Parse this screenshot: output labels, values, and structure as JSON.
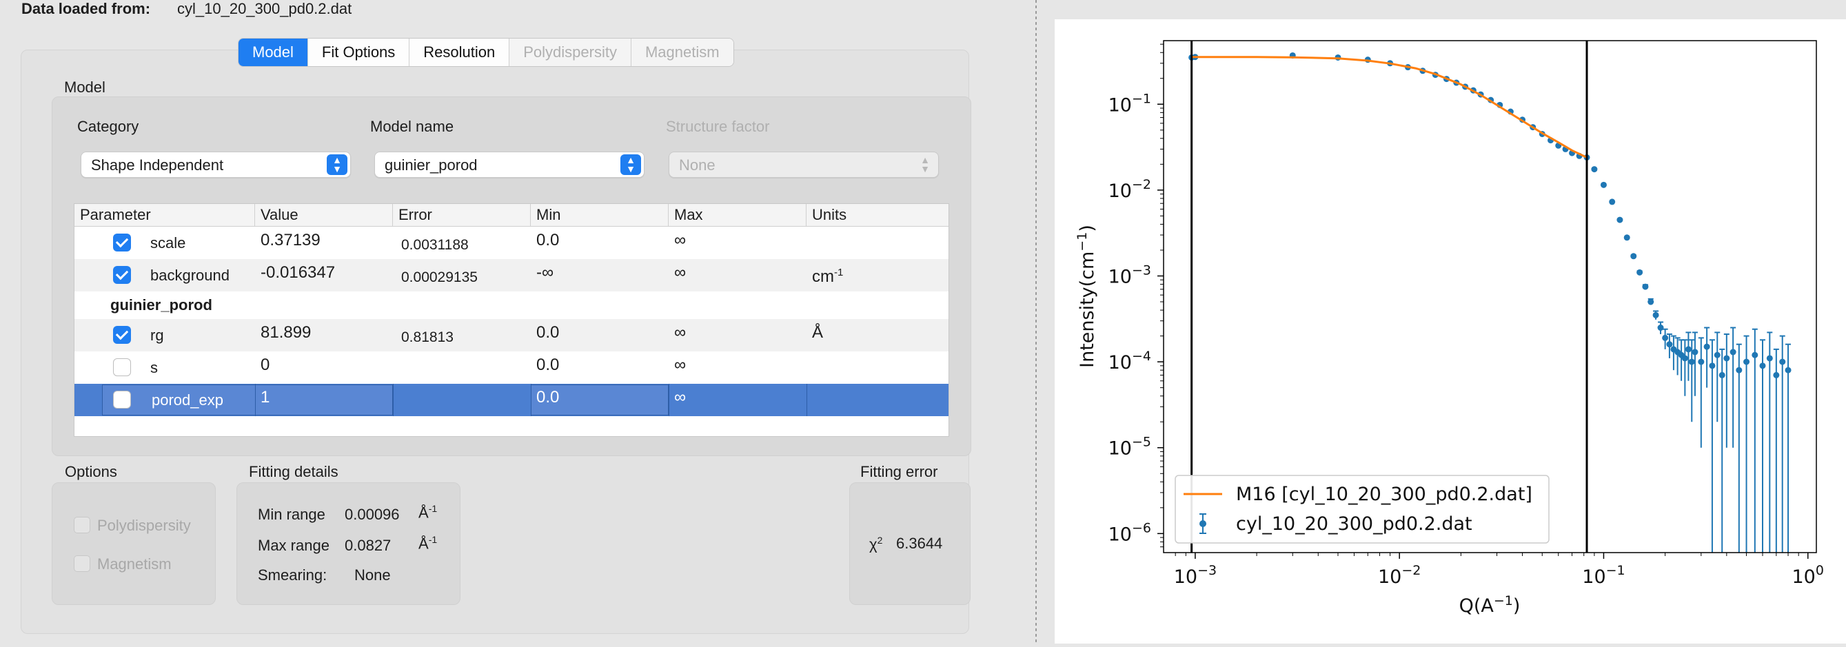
{
  "header": {
    "data_label": "Data loaded from:",
    "data_file": "cyl_10_20_300_pd0.2.dat"
  },
  "tabs": [
    {
      "label": "Model",
      "state": "active"
    },
    {
      "label": "Fit Options",
      "state": "normal"
    },
    {
      "label": "Resolution",
      "state": "normal"
    },
    {
      "label": "Polydispersity",
      "state": "disabled"
    },
    {
      "label": "Magnetism",
      "state": "disabled"
    }
  ],
  "model": {
    "section_label": "Model",
    "category_label": "Category",
    "category_value": "Shape Independent",
    "model_name_label": "Model name",
    "model_name_value": "guinier_porod",
    "structure_factor_label": "Structure factor",
    "structure_factor_value": "None"
  },
  "table": {
    "headers": [
      "Parameter",
      "Value",
      "Error",
      "Min",
      "Max",
      "Units"
    ],
    "rows": [
      {
        "checked": true,
        "name": "scale",
        "value": "0.37139",
        "error": "0.0031188",
        "min": "0.0",
        "max": "∞",
        "units": ""
      },
      {
        "checked": true,
        "name": "background",
        "value": "-0.016347",
        "error": "0.00029135",
        "min": "-∞",
        "max": "∞",
        "units": "cm",
        "units_sup": "-1"
      },
      {
        "group": "guinier_porod"
      },
      {
        "checked": true,
        "name": "rg",
        "value": "81.899",
        "error": "0.81813",
        "min": "0.0",
        "max": "∞",
        "units": "Å"
      },
      {
        "checked": false,
        "name": "s",
        "value": "0",
        "error": "",
        "min": "0.0",
        "max": "∞",
        "units": ""
      },
      {
        "checked": false,
        "name": "porod_exp",
        "value": "1",
        "error": "",
        "min": "0.0",
        "max": "∞",
        "units": "",
        "selected": true
      }
    ]
  },
  "options": {
    "label": "Options",
    "items": [
      "Polydispersity",
      "Magnetism"
    ]
  },
  "fitting_details": {
    "label": "Fitting details",
    "min_range_label": "Min range",
    "min_range_value": "0.00096",
    "max_range_label": "Max range",
    "max_range_value": "0.0827",
    "unit": "Å",
    "unit_sup": "-1",
    "smearing_label": "Smearing:",
    "smearing_value": "None"
  },
  "fitting_error": {
    "label": "Fitting error",
    "chi_label": "χ",
    "chi_sup": "2",
    "chi_value": "6.3644"
  },
  "colors": {
    "accent": "#1f7ef1",
    "selection": "#4b7fd1",
    "data_series": "#1f77b4",
    "model_series": "#ff7f0e"
  },
  "chart_data": {
    "type": "scatter",
    "x_scale": "log",
    "y_scale": "log",
    "xlabel": "Q(A",
    "xlabel_sup": "−1",
    "xlabel_end": ")",
    "ylabel": "Intensity(cm",
    "ylabel_sup": "−1",
    "ylabel_end": ")",
    "xlim": [
      0.0007,
      1.1
    ],
    "ylim": [
      6e-07,
      0.55
    ],
    "x_ticks": [
      {
        "value": 0.001,
        "base": "10",
        "exp": "−3"
      },
      {
        "value": 0.01,
        "base": "10",
        "exp": "−2"
      },
      {
        "value": 0.1,
        "base": "10",
        "exp": "−1"
      },
      {
        "value": 1,
        "base": "10",
        "exp": "0"
      }
    ],
    "y_ticks": [
      {
        "value": 0.1,
        "base": "10",
        "exp": "−1"
      },
      {
        "value": 0.01,
        "base": "10",
        "exp": "−2"
      },
      {
        "value": 0.001,
        "base": "10",
        "exp": "−3"
      },
      {
        "value": 0.0001,
        "base": "10",
        "exp": "−4"
      },
      {
        "value": 1e-05,
        "base": "10",
        "exp": "−5"
      },
      {
        "value": 1e-06,
        "base": "10",
        "exp": "−6"
      }
    ],
    "vlines": [
      0.00096,
      0.0827
    ],
    "legend_position": "bottom-left",
    "series": [
      {
        "name": "M16 [cyl_10_20_300_pd0.2.dat]",
        "kind": "line",
        "x": [
          0.00096,
          0.002,
          0.003,
          0.005,
          0.007,
          0.009,
          0.012,
          0.015,
          0.02,
          0.025,
          0.03,
          0.04,
          0.05,
          0.06,
          0.07,
          0.0827
        ],
        "y": [
          0.355,
          0.354,
          0.352,
          0.342,
          0.322,
          0.298,
          0.262,
          0.224,
          0.17,
          0.128,
          0.098,
          0.064,
          0.046,
          0.036,
          0.029,
          0.024
        ]
      },
      {
        "name": "cyl_10_20_300_pd0.2.dat",
        "kind": "errorbar",
        "x": [
          0.00096,
          0.001,
          0.003,
          0.005,
          0.007,
          0.009,
          0.011,
          0.013,
          0.015,
          0.017,
          0.019,
          0.021,
          0.023,
          0.025,
          0.028,
          0.031,
          0.035,
          0.04,
          0.045,
          0.05,
          0.055,
          0.06,
          0.065,
          0.07,
          0.076,
          0.0827,
          0.09,
          0.1,
          0.11,
          0.12,
          0.13,
          0.14,
          0.15,
          0.16,
          0.17,
          0.18,
          0.19,
          0.2,
          0.21,
          0.22,
          0.23,
          0.24,
          0.25,
          0.26,
          0.27,
          0.28,
          0.3,
          0.32,
          0.34,
          0.36,
          0.38,
          0.4,
          0.43,
          0.46,
          0.5,
          0.55,
          0.6,
          0.65,
          0.7,
          0.75,
          0.8
        ],
        "y": [
          0.35,
          0.355,
          0.37,
          0.35,
          0.33,
          0.3,
          0.27,
          0.245,
          0.22,
          0.197,
          0.178,
          0.16,
          0.145,
          0.13,
          0.112,
          0.098,
          0.082,
          0.066,
          0.054,
          0.045,
          0.038,
          0.033,
          0.03,
          0.027,
          0.025,
          0.024,
          0.0175,
          0.0115,
          0.0073,
          0.0045,
          0.0028,
          0.0017,
          0.0011,
          0.00075,
          0.0005,
          0.00035,
          0.00025,
          0.00019,
          0.00016,
          0.00014,
          0.00013,
          0.00012,
          0.00011,
          0.00014,
          0.0001,
          0.00013,
          0.0001,
          0.00015,
          9e-05,
          0.00012,
          7e-05,
          0.00011,
          0.00013,
          8e-05,
          0.0001,
          0.00012,
          9e-05,
          0.00011,
          7e-05,
          0.0001,
          8e-05
        ],
        "err": [
          0.004,
          0.004,
          0.004,
          0.004,
          0.004,
          0.003,
          0.003,
          0.003,
          0.003,
          0.002,
          0.002,
          0.002,
          0.002,
          0.002,
          0.0015,
          0.0012,
          0.001,
          0.0008,
          0.0006,
          0.0005,
          0.0004,
          0.0004,
          0.0003,
          0.0003,
          0.0003,
          0.0003,
          0.0002,
          0.00015,
          0.0001,
          8e-05,
          6e-05,
          5e-05,
          4e-05,
          4e-05,
          4e-05,
          4e-05,
          4e-05,
          5e-05,
          5e-05,
          6e-05,
          6e-05,
          6e-05,
          7e-05,
          8e-05,
          8e-05,
          9e-05,
          9e-05,
          0.0001,
          9e-05,
          0.0001,
          7e-05,
          0.0001,
          0.00012,
          8e-05,
          0.0001,
          0.00012,
          9e-05,
          0.00011,
          7e-05,
          0.0001,
          8e-05
        ]
      }
    ]
  }
}
